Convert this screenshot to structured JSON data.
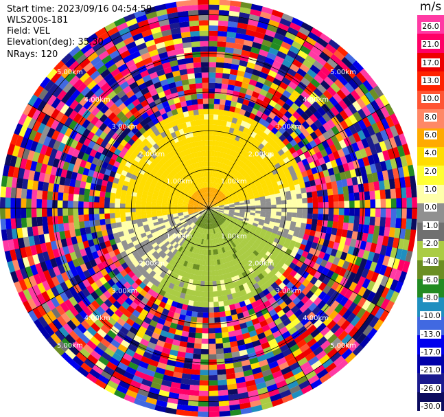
{
  "info": {
    "start_time": "Start time: 2023/09/16 04:54:59",
    "instrument": "WLS200s-181",
    "field": "Field: VEL",
    "elevation": "Elevation(deg): 35.30",
    "nrays": "NRays: 120"
  },
  "colorbar": {
    "unit": "m/s",
    "labels": [
      "26.0",
      "21.0",
      "17.0",
      "13.0",
      "10.0",
      "8.0",
      "6.0",
      "4.0",
      "2.0",
      "1.0",
      "0.0",
      "-1.0",
      "-2.0",
      "-4.0",
      "-6.0",
      "-8.0",
      "-10.0",
      "-13.0",
      "-17.0",
      "-21.0",
      "-26.0",
      "-30.0"
    ],
    "colors": [
      "#ff3aa4",
      "#ff0066",
      "#ee0000",
      "#ff2200",
      "#ff5533",
      "#ff8866",
      "#ffaa00",
      "#ffdd00",
      "#ffff33",
      "#ffffaa",
      "#909090",
      "#707070",
      "#aacc44",
      "#6b8e23",
      "#228b22",
      "#1f8fbf",
      "#4169e1",
      "#0000ee",
      "#0000aa",
      "#1a1a8e",
      "#0b0b5e"
    ]
  },
  "chart_data": {
    "type": "heatmap",
    "subtype": "ppi",
    "field": "VEL",
    "units": "m/s",
    "nrays": 120,
    "elevation_deg": 35.3,
    "range_rings_km": [
      1.0,
      2.0,
      3.0,
      4.0,
      5.0
    ],
    "ring_labels": [
      "1.00km",
      "2.00km",
      "3.00km",
      "4.00km",
      "5.00km"
    ],
    "max_range_km": 5.4,
    "color_bounds": [
      -30,
      -26,
      -21,
      -17,
      -13,
      -10,
      -8,
      -6,
      -4,
      -2,
      -1,
      0,
      1,
      2,
      4,
      6,
      8,
      10,
      13,
      17,
      21,
      26
    ],
    "notes": "Near field (<2 km): positive 2–6 m/s to north/northwest, negative -2 to -6 m/s to south/southeast; beyond ~2.5 km noisy values across full range."
  }
}
